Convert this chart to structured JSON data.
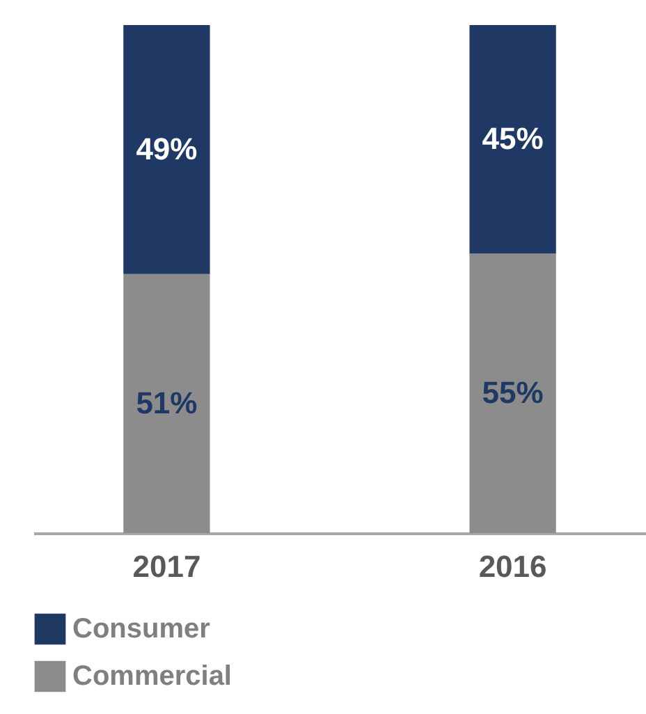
{
  "chart_data": {
    "type": "bar",
    "stacked": true,
    "categories": [
      "2017",
      "2016"
    ],
    "series": [
      {
        "name": "Commercial",
        "color": "#8c8c8c",
        "values": [
          51,
          55
        ],
        "value_labels": [
          "51%",
          "55%"
        ]
      },
      {
        "name": "Consumer",
        "color": "#1f3864",
        "values": [
          49,
          45
        ],
        "value_labels": [
          "49%",
          "45%"
        ]
      }
    ],
    "ylim": [
      0,
      100
    ],
    "tick_labels": "x",
    "legend": "bottom",
    "grid": false
  }
}
